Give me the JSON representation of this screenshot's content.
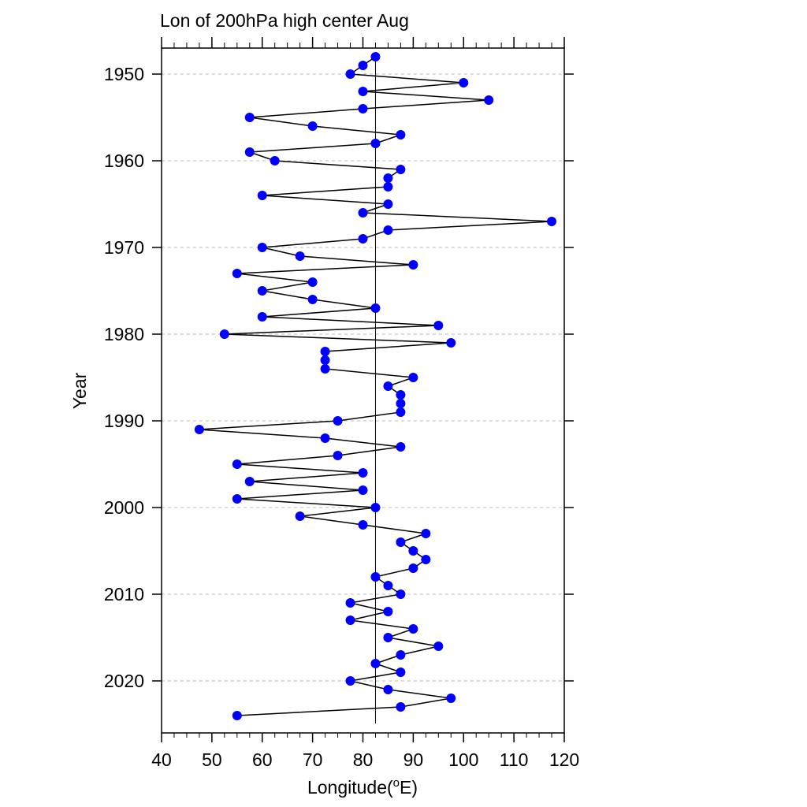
{
  "chart_data": {
    "type": "line",
    "title": "Lon of 200hPa high center Aug",
    "xlabel": "Longitude(",
    "xlabel_sup": "o",
    "xlabel_suffix": "E)",
    "ylabel": "Year",
    "xlim": [
      40,
      120
    ],
    "ylim": [
      1947,
      2026
    ],
    "y_inverted": true,
    "x_ticks": [
      40,
      50,
      60,
      70,
      80,
      90,
      100,
      110,
      120
    ],
    "y_ticks": [
      1950,
      1960,
      1970,
      1980,
      1990,
      2000,
      2010,
      2020
    ],
    "grid": "dashed horizontal at y ticks",
    "reference_line_x": 82.5,
    "colors": {
      "marker": "#0000ff",
      "line": "#000000",
      "grid": "#bbbbbb"
    },
    "series": [
      {
        "years": [
          1948,
          1949,
          1950,
          1951,
          1952,
          1953,
          1954,
          1955,
          1956,
          1957,
          1958,
          1959,
          1960,
          1961,
          1962,
          1963,
          1964,
          1965,
          1966,
          1967,
          1968,
          1969,
          1970,
          1971,
          1972,
          1973,
          1974,
          1975,
          1976,
          1977,
          1978,
          1979,
          1980,
          1981,
          1982,
          1983,
          1984,
          1985,
          1986,
          1987,
          1988,
          1989,
          1990,
          1991,
          1992,
          1993,
          1994,
          1995,
          1996,
          1997,
          1998,
          1999,
          2000,
          2001,
          2002,
          2003,
          2004,
          2005,
          2006,
          2007,
          2008,
          2009,
          2010,
          2011,
          2012,
          2013,
          2014,
          2015,
          2016,
          2017,
          2018,
          2019,
          2020,
          2021,
          2022,
          2023,
          2024
        ],
        "lon": [
          82.5,
          80,
          77.5,
          100,
          80,
          105,
          80,
          57.5,
          70,
          87.5,
          82.5,
          57.5,
          62.5,
          87.5,
          85,
          85,
          60,
          85,
          80,
          117.5,
          85,
          80,
          60,
          67.5,
          90,
          55,
          70,
          60,
          70,
          82.5,
          60,
          95,
          52.5,
          97.5,
          72.5,
          72.5,
          72.5,
          90,
          85,
          87.5,
          87.5,
          87.5,
          75,
          47.5,
          72.5,
          87.5,
          75,
          55,
          80,
          57.5,
          80,
          55,
          82.5,
          67.5,
          80,
          92.5,
          87.5,
          90,
          92.5,
          90,
          82.5,
          85,
          87.5,
          77.5,
          85,
          77.5,
          90,
          85,
          95,
          87.5,
          82.5,
          87.5,
          77.5,
          85,
          97.5,
          87.5,
          55
        ]
      }
    ]
  }
}
